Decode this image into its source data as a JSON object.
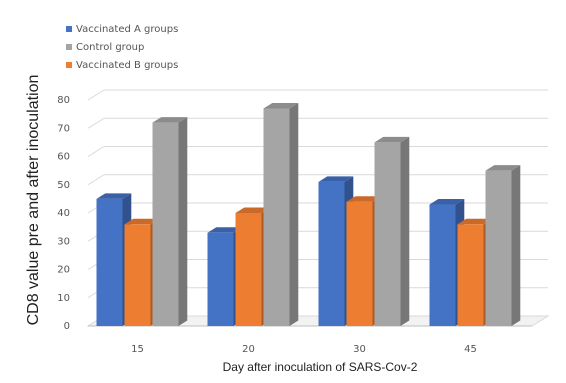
{
  "chart_data": {
    "type": "bar",
    "title": "",
    "xlabel": "Day after inoculation of SARS-Cov-2",
    "ylabel": "CD8 value pre and after inoculation",
    "categories": [
      "15",
      "20",
      "30",
      "45"
    ],
    "ylim": [
      0,
      80
    ],
    "yticks": [
      0,
      10,
      20,
      30,
      40,
      50,
      60,
      70,
      80
    ],
    "grid": true,
    "legend_position": "top-left",
    "series": [
      {
        "name": "Vaccinated A groups",
        "values": [
          45,
          33,
          51,
          43
        ],
        "color": "#4472c4"
      },
      {
        "name": "Vaccinated B groups",
        "values": [
          36,
          40,
          44,
          36
        ],
        "color": "#ed7d31"
      },
      {
        "name": "Control group",
        "values": [
          72,
          77,
          65,
          55
        ],
        "color": "#a5a5a5"
      }
    ],
    "legend_order": [
      "Vaccinated A groups",
      "Control group",
      "Vaccinated B groups"
    ]
  }
}
